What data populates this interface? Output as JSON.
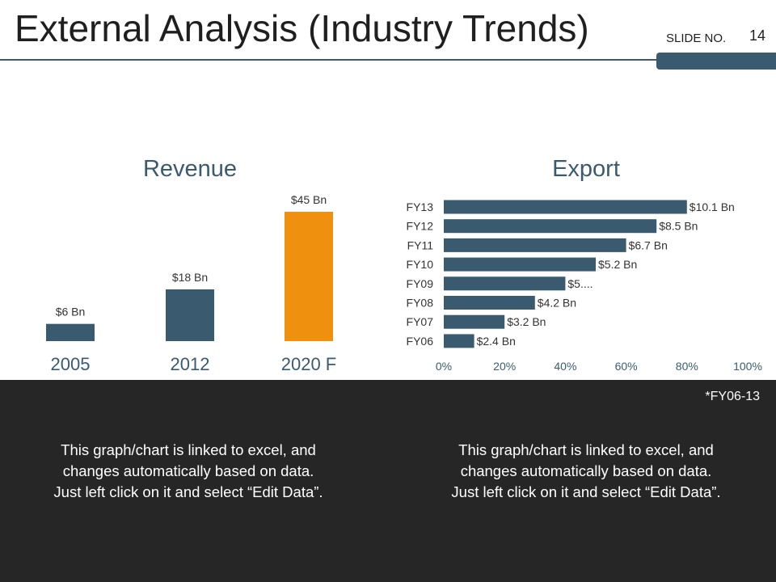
{
  "header": {
    "title": "External Analysis (Industry Trends)",
    "slide_label": "SLIDE NO.",
    "slide_number": "14"
  },
  "colors": {
    "primary": "#3a5a70",
    "accent": "#f0900f",
    "panel": "#262626"
  },
  "chart_data": [
    {
      "type": "bar",
      "title": "Revenue",
      "categories": [
        "2005",
        "2012",
        "2020 F"
      ],
      "values": [
        6,
        18,
        45
      ],
      "labels": [
        "$6 Bn",
        "$18 Bn",
        "$45 Bn"
      ],
      "highlight_index": 2,
      "ylim": [
        0,
        45
      ],
      "xlabel": "",
      "ylabel": ""
    },
    {
      "type": "bar",
      "orientation": "horizontal",
      "title": "Export",
      "categories": [
        "FY13",
        "FY12",
        "FY11",
        "FY10",
        "FY09",
        "FY08",
        "FY07",
        "FY06"
      ],
      "values": [
        80,
        70,
        60,
        50,
        40,
        30,
        20,
        10
      ],
      "labels": [
        "$10.1 Bn",
        "$8.5 Bn",
        "$6.7 Bn",
        "$5.2 Bn",
        "$5....",
        "$4.2 Bn",
        "$3.2 Bn",
        "$2.4 Bn"
      ],
      "xticks": [
        "0%",
        "20%",
        "40%",
        "60%",
        "80%",
        "100%"
      ],
      "xlim": [
        0,
        100
      ],
      "xlabel": "",
      "ylabel": ""
    }
  ],
  "footer": {
    "footnote": "*FY06-13",
    "note_left": "This graph/chart is linked to excel, and changes automatically based on data. Just left click on it and select “Edit Data”.",
    "note_right": "This graph/chart is linked to excel, and changes automatically based on data. Just left click on it and select “Edit Data”."
  }
}
